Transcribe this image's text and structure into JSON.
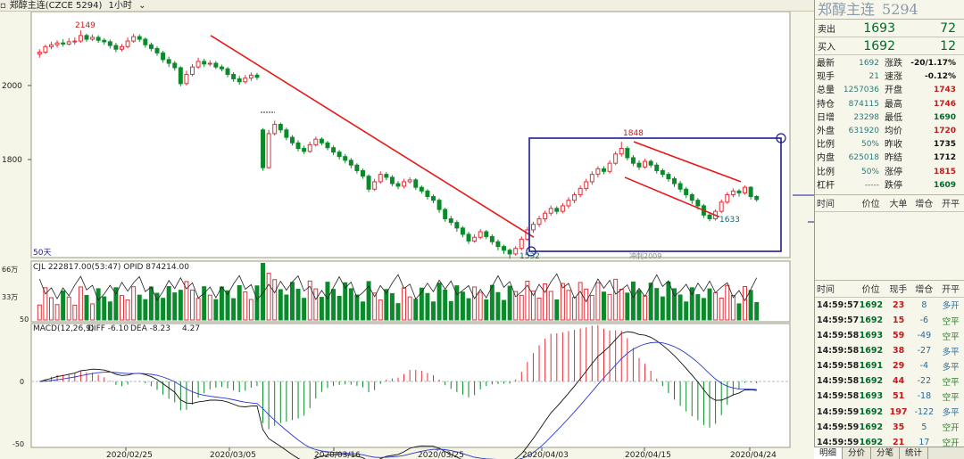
{
  "topbar": {
    "symbol": "郑醇主连(CZCE 5294)",
    "period": "1小时"
  },
  "chart_data": {
    "type": "candlestick",
    "price_ticks": [
      2000,
      1800
    ],
    "price_range": [
      1540,
      2190
    ],
    "labels": {
      "high_label": "2149",
      "low_label": "1532",
      "box_high_label": "1848",
      "box_low_label": "1633",
      "ma_label": "50天",
      "watermark": "冲刺2009"
    },
    "volume_header": "CJL    222817.00(53:47)  OPID 874214.00",
    "volume_ticks": [
      "66万",
      "33万"
    ],
    "macd_header": {
      "name": "MACD(12,26,9)",
      "diff": "DIFF -6.10",
      "dea": "DEA -8.23",
      "macd": "4.27"
    },
    "macd_ticks": [
      50,
      0,
      -50
    ],
    "dates": [
      "2020/02/25",
      "2020/03/05",
      "2020/03/16",
      "2020/03/25",
      "2020/04/03",
      "2020/04/15",
      "2020/04/24"
    ],
    "candles": [
      [
        2085,
        2090,
        2075,
        2098
      ],
      [
        2090,
        2105,
        2085,
        2110
      ],
      [
        2105,
        2110,
        2098,
        2118
      ],
      [
        2110,
        2115,
        2102,
        2122
      ],
      [
        2115,
        2112,
        2105,
        2125
      ],
      [
        2112,
        2118,
        2108,
        2128
      ],
      [
        2118,
        2120,
        2110,
        2130
      ],
      [
        2120,
        2135,
        2115,
        2149
      ],
      [
        2135,
        2125,
        2118,
        2140
      ],
      [
        2125,
        2130,
        2120,
        2138
      ],
      [
        2130,
        2122,
        2115,
        2136
      ],
      [
        2122,
        2118,
        2110,
        2128
      ],
      [
        2118,
        2108,
        2100,
        2124
      ],
      [
        2108,
        2098,
        2090,
        2115
      ],
      [
        2098,
        2105,
        2092,
        2112
      ],
      [
        2105,
        2120,
        2100,
        2130
      ],
      [
        2120,
        2132,
        2115,
        2140
      ],
      [
        2132,
        2125,
        2118,
        2138
      ],
      [
        2125,
        2110,
        2102,
        2130
      ],
      [
        2110,
        2100,
        2092,
        2116
      ],
      [
        2100,
        2088,
        2080,
        2106
      ],
      [
        2088,
        2070,
        2062,
        2094
      ],
      [
        2070,
        2060,
        2050,
        2078
      ],
      [
        2060,
        2048,
        2040,
        2066
      ],
      [
        2048,
        2005,
        1998,
        2052
      ],
      [
        2005,
        2030,
        2000,
        2040
      ],
      [
        2030,
        2050,
        2025,
        2058
      ],
      [
        2050,
        2065,
        2045,
        2075
      ],
      [
        2065,
        2058,
        2050,
        2072
      ],
      [
        2058,
        2060,
        2052,
        2068
      ],
      [
        2060,
        2050,
        2044,
        2066
      ],
      [
        2050,
        2045,
        2038,
        2056
      ],
      [
        2045,
        2030,
        2022,
        2050
      ],
      [
        2030,
        2018,
        2010,
        2036
      ],
      [
        2018,
        2010,
        2002,
        2026
      ],
      [
        2010,
        2020,
        2005,
        2028
      ],
      [
        2020,
        2028,
        2012,
        2035
      ],
      [
        2028,
        2022,
        2015,
        2034
      ],
      [
        1880,
        1778,
        1770,
        1885
      ],
      [
        1778,
        1870,
        1775,
        1880
      ],
      [
        1870,
        1895,
        1865,
        1905
      ],
      [
        1895,
        1880,
        1872,
        1900
      ],
      [
        1880,
        1860,
        1852,
        1886
      ],
      [
        1860,
        1845,
        1838,
        1866
      ],
      [
        1845,
        1830,
        1822,
        1852
      ],
      [
        1830,
        1822,
        1815,
        1838
      ],
      [
        1822,
        1840,
        1818,
        1848
      ],
      [
        1840,
        1855,
        1835,
        1862
      ],
      [
        1855,
        1845,
        1838,
        1860
      ],
      [
        1845,
        1832,
        1825,
        1850
      ],
      [
        1832,
        1820,
        1812,
        1838
      ],
      [
        1820,
        1808,
        1800,
        1826
      ],
      [
        1808,
        1798,
        1790,
        1815
      ],
      [
        1798,
        1785,
        1776,
        1804
      ],
      [
        1785,
        1770,
        1762,
        1790
      ],
      [
        1770,
        1755,
        1748,
        1776
      ],
      [
        1755,
        1720,
        1712,
        1760
      ],
      [
        1720,
        1740,
        1715,
        1748
      ],
      [
        1740,
        1760,
        1735,
        1768
      ],
      [
        1760,
        1752,
        1744,
        1766
      ],
      [
        1752,
        1735,
        1728,
        1758
      ],
      [
        1735,
        1728,
        1720,
        1742
      ],
      [
        1728,
        1740,
        1722,
        1748
      ],
      [
        1740,
        1745,
        1735,
        1752
      ],
      [
        1745,
        1725,
        1718,
        1750
      ],
      [
        1725,
        1715,
        1708,
        1730
      ],
      [
        1715,
        1700,
        1692,
        1720
      ],
      [
        1700,
        1690,
        1682,
        1706
      ],
      [
        1690,
        1665,
        1656,
        1695
      ],
      [
        1665,
        1640,
        1632,
        1670
      ],
      [
        1640,
        1630,
        1622,
        1648
      ],
      [
        1630,
        1615,
        1605,
        1636
      ],
      [
        1615,
        1598,
        1590,
        1620
      ],
      [
        1598,
        1580,
        1572,
        1605
      ],
      [
        1580,
        1590,
        1575,
        1598
      ],
      [
        1590,
        1605,
        1585,
        1612
      ],
      [
        1605,
        1592,
        1585,
        1610
      ],
      [
        1592,
        1578,
        1570,
        1598
      ],
      [
        1578,
        1565,
        1555,
        1584
      ],
      [
        1565,
        1555,
        1545,
        1570
      ],
      [
        1555,
        1545,
        1532,
        1560
      ],
      [
        1545,
        1560,
        1540,
        1566
      ],
      [
        1560,
        1585,
        1555,
        1592
      ],
      [
        1585,
        1610,
        1580,
        1618
      ],
      [
        1610,
        1625,
        1602,
        1632
      ],
      [
        1625,
        1640,
        1618,
        1648
      ],
      [
        1640,
        1655,
        1632,
        1662
      ],
      [
        1655,
        1668,
        1648,
        1676
      ],
      [
        1668,
        1660,
        1652,
        1674
      ],
      [
        1660,
        1675,
        1655,
        1682
      ],
      [
        1675,
        1690,
        1668,
        1698
      ],
      [
        1690,
        1705,
        1682,
        1712
      ],
      [
        1705,
        1722,
        1698,
        1730
      ],
      [
        1722,
        1740,
        1715,
        1748
      ],
      [
        1740,
        1760,
        1732,
        1768
      ],
      [
        1760,
        1775,
        1752,
        1782
      ],
      [
        1775,
        1768,
        1760,
        1782
      ],
      [
        1768,
        1790,
        1762,
        1798
      ],
      [
        1790,
        1815,
        1785,
        1822
      ],
      [
        1815,
        1830,
        1808,
        1848
      ],
      [
        1830,
        1805,
        1798,
        1836
      ],
      [
        1805,
        1790,
        1782,
        1812
      ],
      [
        1790,
        1780,
        1772,
        1798
      ],
      [
        1780,
        1795,
        1775,
        1802
      ],
      [
        1795,
        1785,
        1778,
        1800
      ],
      [
        1785,
        1770,
        1762,
        1792
      ],
      [
        1770,
        1760,
        1752,
        1776
      ],
      [
        1760,
        1748,
        1740,
        1766
      ],
      [
        1748,
        1735,
        1726,
        1754
      ],
      [
        1735,
        1720,
        1712,
        1742
      ],
      [
        1720,
        1705,
        1696,
        1726
      ],
      [
        1705,
        1690,
        1680,
        1710
      ],
      [
        1690,
        1675,
        1665,
        1696
      ],
      [
        1675,
        1650,
        1642,
        1680
      ],
      [
        1650,
        1640,
        1633,
        1658
      ],
      [
        1640,
        1660,
        1635,
        1666
      ],
      [
        1660,
        1685,
        1655,
        1692
      ],
      [
        1685,
        1705,
        1680,
        1712
      ],
      [
        1705,
        1715,
        1698,
        1722
      ],
      [
        1715,
        1710,
        1700,
        1720
      ],
      [
        1710,
        1725,
        1705,
        1730
      ],
      [
        1725,
        1700,
        1692,
        1728
      ],
      [
        1700,
        1692,
        1686,
        1704
      ]
    ]
  },
  "panel": {
    "title": "郑醇主连",
    "code": "5294",
    "sell": {
      "label": "卖出",
      "price": "1693",
      "vol": "72"
    },
    "buy": {
      "label": "买入",
      "price": "1692",
      "vol": "12"
    },
    "quote": [
      {
        "l1": "最新",
        "v1": "1692",
        "l2": "涨跌",
        "v2": "-20/1.17%",
        "c2": "#111"
      },
      {
        "l1": "现手",
        "v1": "21",
        "l2": "速涨",
        "v2": "-0.12%",
        "c2": "#111"
      },
      {
        "l1": "总量",
        "v1": "1257036",
        "l2": "开盘",
        "v2": "1743",
        "c2": "#c81818"
      },
      {
        "l1": "持仓",
        "v1": "874115",
        "l2": "最高",
        "v2": "1746",
        "c2": "#c81818"
      },
      {
        "l1": "日增",
        "v1": "23298",
        "l2": "最低",
        "v2": "1690",
        "c2": "#006b2a"
      },
      {
        "l1": "外盘",
        "v1": "631920",
        "l2": "均价",
        "v2": "1720",
        "c2": "#c81818"
      },
      {
        "l1": "比例",
        "v1": "50%",
        "l2": "昨收",
        "v2": "1735",
        "c2": "#111"
      },
      {
        "l1": "内盘",
        "v1": "625018",
        "l2": "昨结",
        "v2": "1712",
        "c2": "#111"
      },
      {
        "l1": "比例",
        "v1": "50%",
        "l2": "涨停",
        "v2": "1815",
        "c2": "#c81818"
      },
      {
        "l1": "杠杆",
        "v1": "-----",
        "l2": "跌停",
        "v2": "1609",
        "c2": "#006b2a"
      }
    ],
    "big_orders_head": [
      "时间",
      "价位",
      "大单",
      "增仓",
      "开平"
    ],
    "trades_head": [
      "时间",
      "价位",
      "现手",
      "增仓",
      "开平"
    ],
    "trades": [
      [
        "14:59:57",
        "1692",
        "23",
        "8",
        "多开"
      ],
      [
        "14:59:57",
        "1692",
        "15",
        "-6",
        "空平"
      ],
      [
        "14:59:58",
        "1693",
        "59",
        "-49",
        "空平"
      ],
      [
        "14:59:58",
        "1692",
        "38",
        "-27",
        "多平"
      ],
      [
        "14:59:58",
        "1691",
        "29",
        "-4",
        "多平"
      ],
      [
        "14:59:58",
        "1692",
        "44",
        "-22",
        "空平"
      ],
      [
        "14:59:58",
        "1693",
        "51",
        "-18",
        "空平"
      ],
      [
        "14:59:59",
        "1692",
        "197",
        "-122",
        "多平"
      ],
      [
        "14:59:59",
        "1692",
        "35",
        "5",
        "空开"
      ],
      [
        "14:59:59",
        "1692",
        "21",
        "17",
        "空开"
      ]
    ],
    "tabs": [
      "明细",
      "分价",
      "分笔",
      "统计"
    ]
  },
  "colors": {
    "up": "#e0303a",
    "down": "#0a8a2a",
    "trendline": "#e81818",
    "box": "#1c1c90"
  }
}
